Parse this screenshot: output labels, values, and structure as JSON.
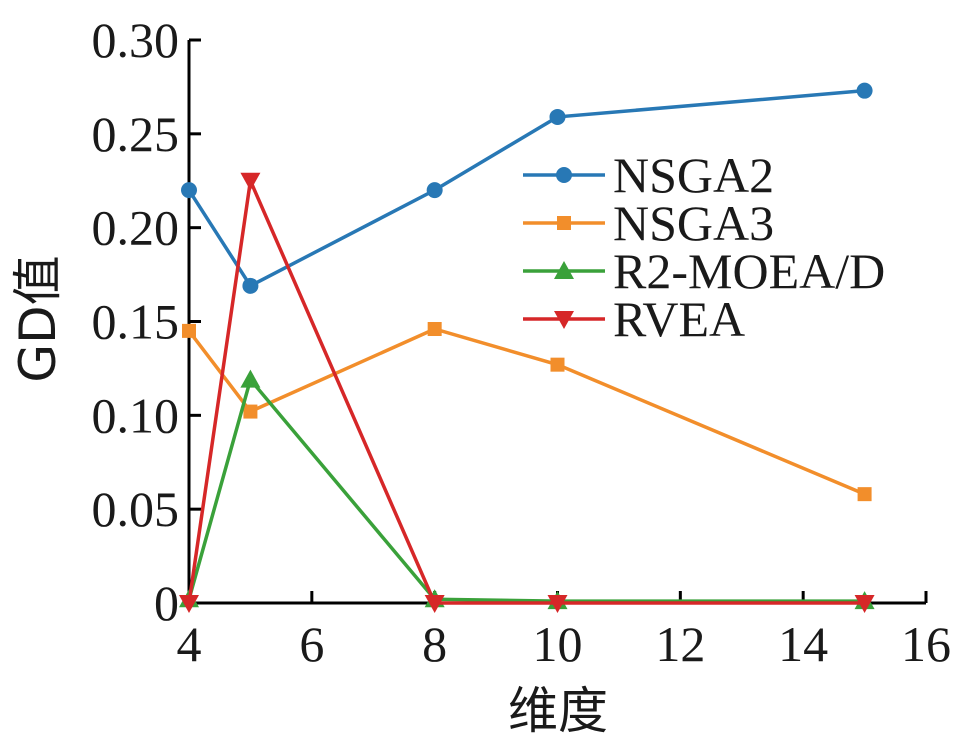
{
  "chart_data": {
    "type": "line",
    "xlabel": "维度",
    "ylabel": "GD值",
    "xlim": [
      4,
      16
    ],
    "ylim": [
      0,
      0.3
    ],
    "xticks": [
      "4",
      "6",
      "8",
      "10",
      "12",
      "14",
      "16"
    ],
    "yticks": [
      "0",
      "0.05",
      "0.10",
      "0.15",
      "0.20",
      "0.25",
      "0.30"
    ],
    "x": [
      4,
      5,
      8,
      10,
      15
    ],
    "series": [
      {
        "name": "NSGA2",
        "marker": "circle",
        "color": "#2878b5",
        "values": [
          0.22,
          0.169,
          0.22,
          0.259,
          0.273
        ]
      },
      {
        "name": "NSGA3",
        "marker": "square",
        "color": "#f28e2b",
        "values": [
          0.145,
          0.102,
          0.146,
          0.127,
          0.058
        ]
      },
      {
        "name": "R2-MOEA/D",
        "marker": "triangle-up",
        "color": "#3aa13a",
        "values": [
          0.002,
          0.119,
          0.002,
          0.001,
          0.001
        ]
      },
      {
        "name": "RVEA",
        "marker": "triangle-down",
        "color": "#d62728",
        "values": [
          0.0,
          0.225,
          0.0,
          0.0,
          0.0
        ]
      }
    ],
    "legend": "upper-right",
    "grid": false
  }
}
